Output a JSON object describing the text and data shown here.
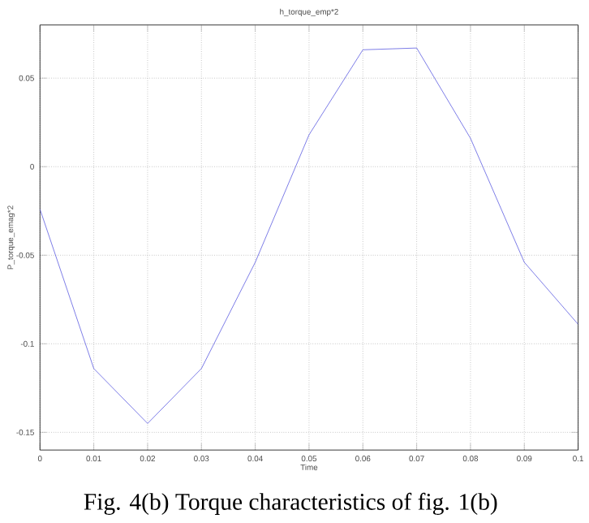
{
  "chart_data": {
    "type": "line",
    "title": "h_torque_emp*2",
    "xlabel": "Time",
    "ylabel": "P_torque_emag*2",
    "annotations": [
      "Fig. 4(b) Torque characteristics of fig. 1(b)"
    ],
    "x": [
      0,
      0.01,
      0.02,
      0.03,
      0.04,
      0.05,
      0.06,
      0.07,
      0.08,
      0.09,
      0.1
    ],
    "series": [
      {
        "color": "#5a5ae0",
        "values": [
          -0.024,
          -0.114,
          -0.145,
          -0.114,
          -0.054,
          0.018,
          0.066,
          0.067,
          0.016,
          -0.054,
          -0.089
        ]
      }
    ],
    "xlim": [
      0,
      0.1
    ],
    "ylim": [
      -0.16,
      0.08
    ],
    "xticks": [
      0,
      0.01,
      0.02,
      0.03,
      0.04,
      0.05,
      0.06,
      0.07,
      0.08,
      0.09,
      0.1
    ],
    "yticks": [
      -0.15,
      -0.1,
      -0.05,
      0,
      0.05
    ],
    "grid": true,
    "legend": false,
    "marker": "none",
    "line_style": "solid"
  }
}
